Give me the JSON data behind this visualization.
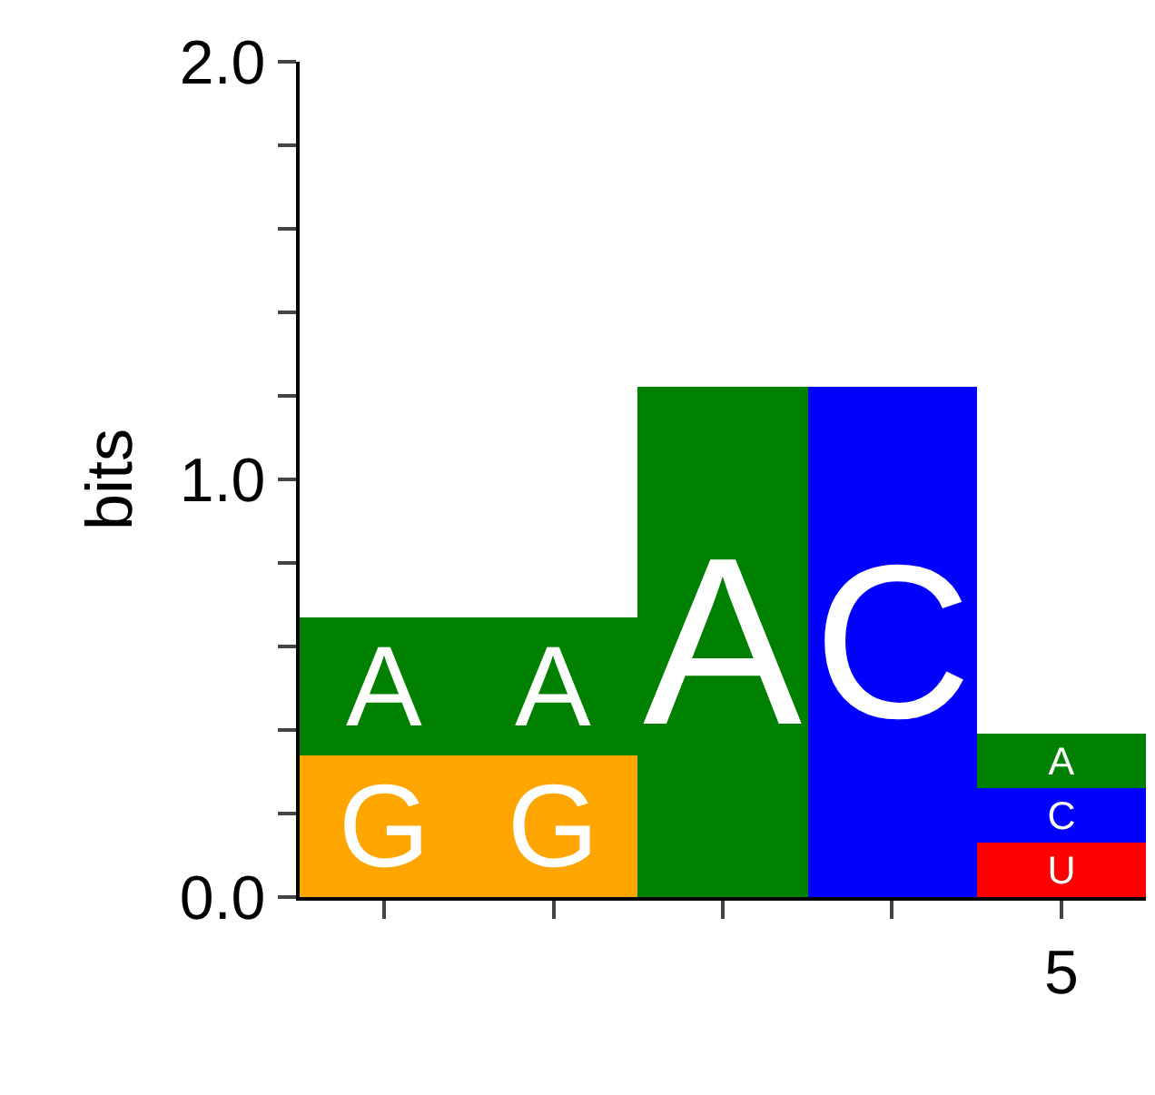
{
  "chart_data": {
    "type": "bar",
    "stacked": true,
    "ylabel": "bits",
    "categories": [
      null,
      null,
      null,
      null,
      "5"
    ],
    "series": [
      {
        "name": "U",
        "color": "#ff0000",
        "values": [
          null,
          null,
          null,
          null,
          0.13
        ]
      },
      {
        "name": "C",
        "color": "#0000ff",
        "values": [
          null,
          null,
          null,
          1.22,
          0.13
        ]
      },
      {
        "name": "G",
        "color": "#ffa500",
        "values": [
          0.34,
          0.34,
          null,
          null,
          null
        ]
      },
      {
        "name": "A",
        "color": "#008000",
        "values": [
          0.33,
          0.33,
          1.22,
          null,
          0.13
        ]
      }
    ],
    "ylim": [
      0,
      2.0
    ],
    "yticks": [
      {
        "value": 0,
        "label": "0.0"
      },
      {
        "value": 0.2,
        "label": null
      },
      {
        "value": 0.4,
        "label": null
      },
      {
        "value": 0.6,
        "label": null
      },
      {
        "value": 0.8,
        "label": null
      },
      {
        "value": 1.0,
        "label": "1.0"
      },
      {
        "value": 1.2,
        "label": null
      },
      {
        "value": 1.4,
        "label": null
      },
      {
        "value": 1.6,
        "label": null
      },
      {
        "value": 1.8,
        "label": null
      },
      {
        "value": 2.0,
        "label": "2.0"
      }
    ],
    "legend": false
  }
}
